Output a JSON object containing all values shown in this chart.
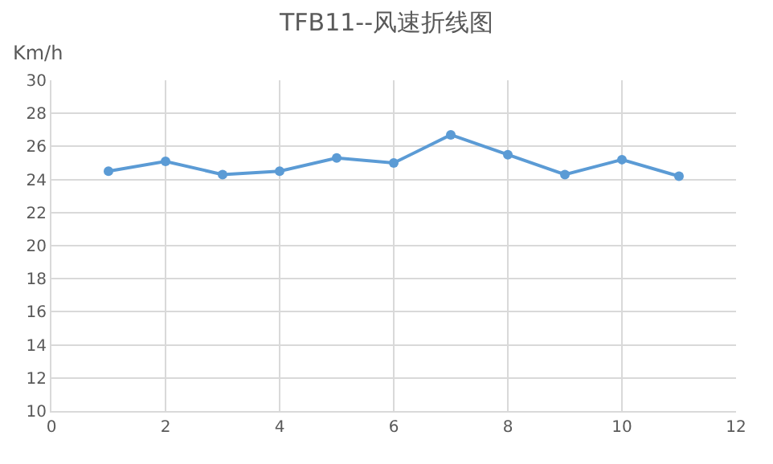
{
  "chart_data": {
    "type": "line",
    "title": "TFB11--风速折线图",
    "ylabel": "Km/h",
    "x": [
      1,
      2,
      3,
      4,
      5,
      6,
      7,
      8,
      9,
      10,
      11
    ],
    "series": [
      {
        "color": "#5b9bd5",
        "values": [
          24.5,
          25.1,
          24.3,
          24.5,
          25.3,
          25.0,
          26.7,
          25.5,
          24.3,
          25.2,
          24.2
        ]
      }
    ],
    "xlim": [
      0,
      12
    ],
    "xticks": [
      0,
      2,
      4,
      6,
      8,
      10,
      12
    ],
    "ylim": [
      10,
      30
    ],
    "yticks": [
      10,
      12,
      14,
      16,
      18,
      20,
      22,
      24,
      26,
      28,
      30
    ],
    "grid": true,
    "marker": "circle",
    "line_style": "solid"
  }
}
